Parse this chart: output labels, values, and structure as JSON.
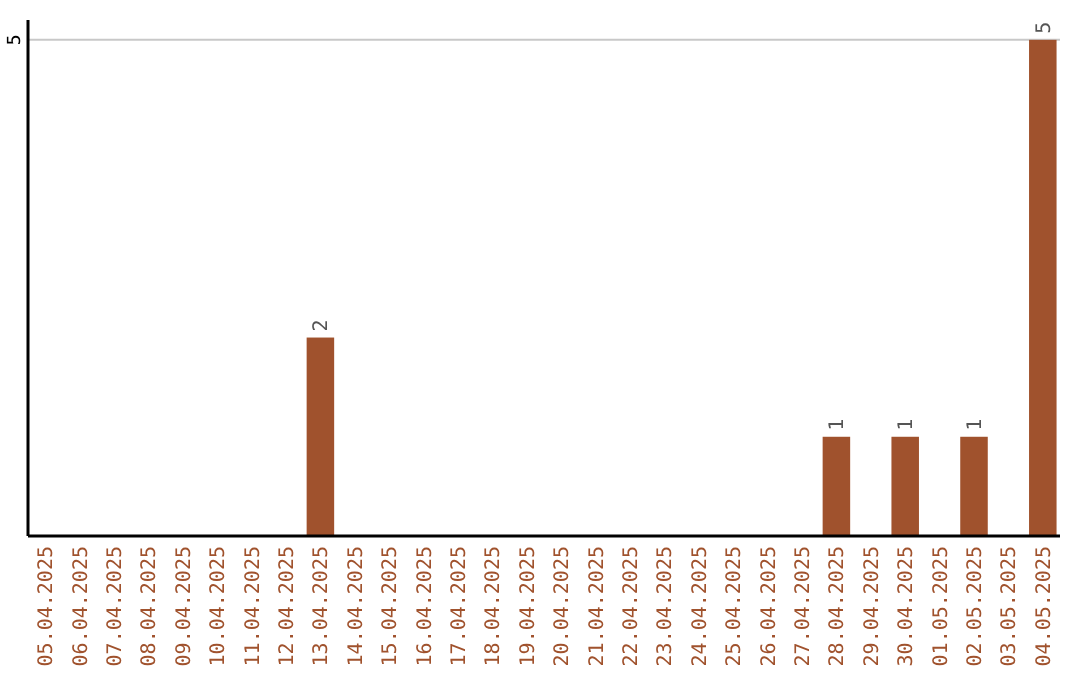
{
  "chart_data": {
    "type": "bar",
    "categories": [
      "05.04.2025",
      "06.04.2025",
      "07.04.2025",
      "08.04.2025",
      "09.04.2025",
      "10.04.2025",
      "11.04.2025",
      "12.04.2025",
      "13.04.2025",
      "14.04.2025",
      "15.04.2025",
      "16.04.2025",
      "17.04.2025",
      "18.04.2025",
      "19.04.2025",
      "20.04.2025",
      "21.04.2025",
      "22.04.2025",
      "23.04.2025",
      "24.04.2025",
      "25.04.2025",
      "26.04.2025",
      "27.04.2025",
      "28.04.2025",
      "29.04.2025",
      "30.04.2025",
      "01.05.2025",
      "02.05.2025",
      "03.05.2025",
      "04.05.2025"
    ],
    "values": [
      0,
      0,
      0,
      0,
      0,
      0,
      0,
      0,
      2,
      0,
      0,
      0,
      0,
      0,
      0,
      0,
      0,
      0,
      0,
      0,
      0,
      0,
      0,
      1,
      0,
      1,
      0,
      1,
      0,
      5
    ],
    "value_labels": [
      null,
      null,
      null,
      null,
      null,
      null,
      null,
      null,
      "2",
      null,
      null,
      null,
      null,
      null,
      null,
      null,
      null,
      null,
      null,
      null,
      null,
      null,
      null,
      "1",
      null,
      "1",
      null,
      "1",
      null,
      "5"
    ],
    "color": "#a0522d",
    "ylim": [
      0,
      5.2
    ],
    "yticks": [
      5
    ],
    "grid": "y"
  }
}
